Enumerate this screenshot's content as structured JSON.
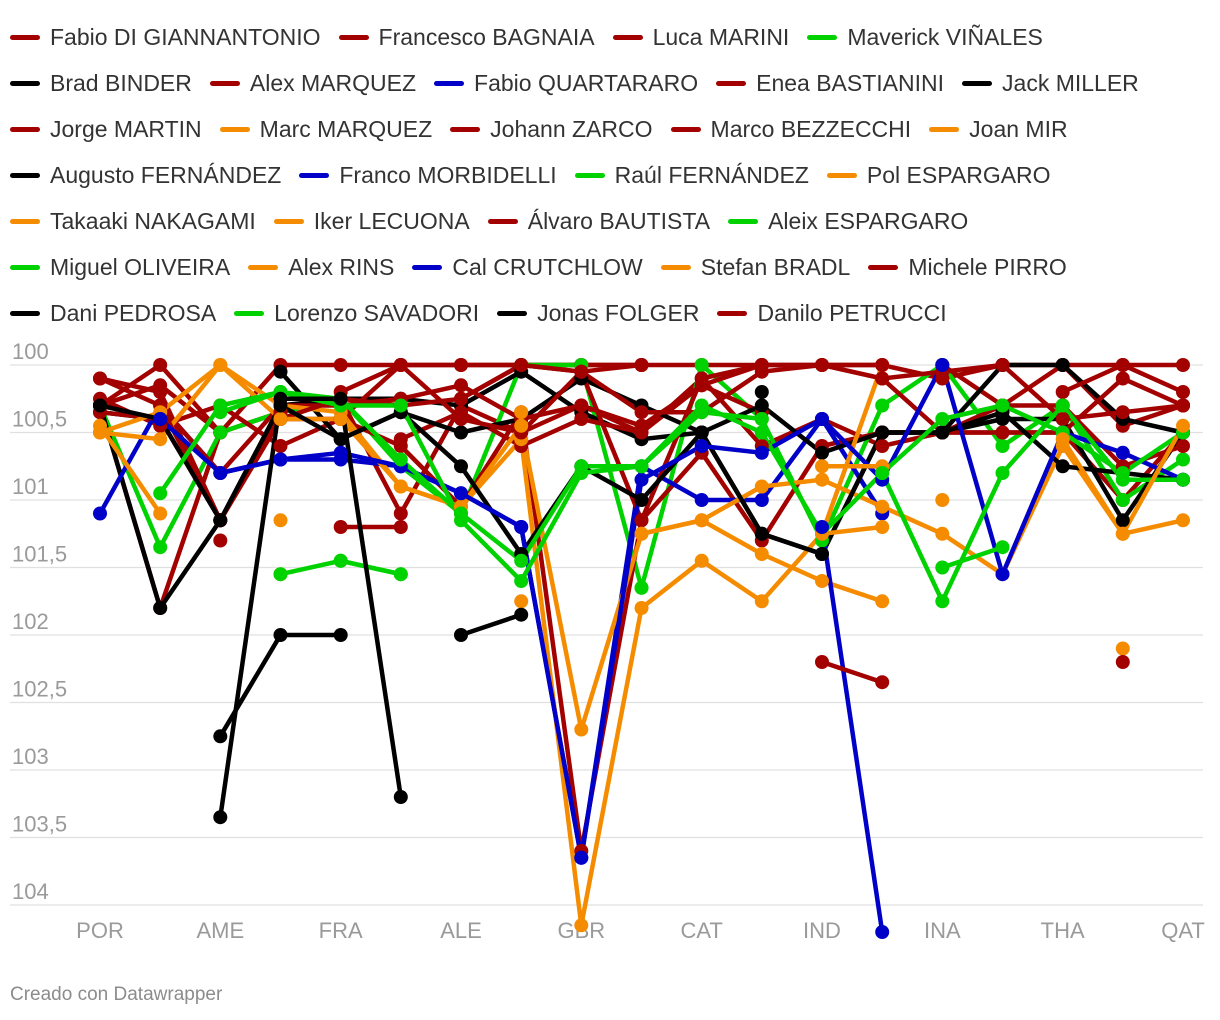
{
  "colors": {
    "dark_red": "#a30000",
    "green": "#00d200",
    "black": "#000000",
    "blue": "#0000c8",
    "orange": "#f58c00",
    "grid": "#e0e0e0",
    "tick_text": "#9a9a9a"
  },
  "credit": "Creado con Datawrapper",
  "chart_data": {
    "type": "line",
    "categories": [
      "POR",
      "",
      "AME",
      "",
      "FRA",
      "",
      "ALE",
      "",
      "GBR",
      "",
      "CAT",
      "",
      "IND",
      "",
      "INA",
      "",
      "THA",
      "",
      "QAT"
    ],
    "y_ticks": [
      "100",
      "100,5",
      "101",
      "101,5",
      "102",
      "102,5",
      "103",
      "103,5",
      "104"
    ],
    "y_tick_values": [
      100,
      100.5,
      101,
      101.5,
      102,
      102.5,
      103,
      103.5,
      104
    ],
    "ylim": [
      100,
      104.2
    ],
    "y_reversed": true,
    "grid": true,
    "legend_position": "top",
    "series": [
      {
        "name": "Fabio DI GIANNANTONIO",
        "color": "#a30000",
        "values": [
          100.3,
          100.0,
          100.5,
          100.0,
          100.0,
          100.0,
          100.0,
          100.0,
          100.0,
          100.0,
          null,
          null,
          null,
          null,
          null,
          null,
          null,
          null,
          null
        ]
      },
      {
        "name": "Francesco BAGNAIA",
        "color": "#a30000",
        "values": [
          100.3,
          100.15,
          100.5,
          null,
          100.2,
          100.0,
          100.0,
          100.0,
          100.0,
          100.0,
          100.0,
          100.0,
          100.0,
          100.0,
          100.1,
          100.0,
          100.0,
          100.0,
          100.0
        ]
      },
      {
        "name": "Luca MARINI",
        "color": "#a30000",
        "values": [
          100.3,
          101.8,
          100.5,
          100.35,
          100.25,
          101.1,
          100.3,
          100.5,
          100.3,
          100.5,
          100.1,
          100.6,
          100.4,
          100.6,
          100.5,
          100.5,
          100.5,
          101.0,
          100.5
        ]
      },
      {
        "name": "Maverick VIÑALES",
        "color": "#00d200",
        "values": [
          100.3,
          101.35,
          100.5,
          100.35,
          100.25,
          100.75,
          101.1,
          100.0,
          100.0,
          101.65,
          100.0,
          100.4,
          101.3,
          100.3,
          100.0,
          100.6,
          100.3,
          101.0,
          100.7
        ]
      },
      {
        "name": "Brad BINDER",
        "color": "#000000",
        "values": [
          100.3,
          101.8,
          101.15,
          100.3,
          100.25,
          100.25,
          100.3,
          100.05,
          100.35,
          100.55,
          100.5,
          101.25,
          101.4,
          100.5,
          100.5,
          100.4,
          100.4,
          101.15,
          100.5
        ]
      },
      {
        "name": "Alex MARQUEZ",
        "color": "#a30000",
        "values": [
          100.25,
          100.45,
          100.3,
          100.6,
          100.4,
          100.6,
          101.05,
          100.35,
          103.6,
          101.15,
          100.65,
          101.3,
          100.6,
          100.5,
          100.5,
          100.3,
          100.3,
          100.75,
          100.6
        ]
      },
      {
        "name": "Fabio QUARTARARO",
        "color": "#0000c8",
        "values": [
          101.1,
          100.3,
          100.8,
          100.7,
          100.7,
          100.75,
          100.95,
          101.2,
          103.65,
          100.75,
          101.0,
          101.0,
          100.4,
          101.1,
          null,
          null,
          null,
          null,
          null
        ]
      },
      {
        "name": "Enea BASTIANINI",
        "color": "#a30000",
        "values": [
          100.1,
          100.2,
          101.15,
          100.35,
          null,
          100.55,
          100.35,
          100.6,
          100.4,
          100.5,
          100.15,
          100.35,
          null,
          null,
          100.0,
          100.3,
          100.0,
          100.45,
          100.3
        ]
      },
      {
        "name": "Jack MILLER",
        "color": "#000000",
        "values": [
          100.35,
          100.4,
          null,
          100.05,
          100.55,
          100.35,
          100.5,
          100.4,
          100.1,
          100.3,
          100.5,
          100.3,
          100.65,
          100.5,
          100.5,
          100.0,
          100.0,
          100.4,
          100.5
        ]
      },
      {
        "name": "Jorge MARTIN",
        "color": "#a30000",
        "values": [
          100.1,
          100.3,
          100.8,
          100.3,
          100.3,
          100.25,
          100.15,
          100.4,
          100.3,
          100.45,
          100.15,
          100.0,
          null,
          100.1,
          100.05,
          100.0,
          100.4,
          100.35,
          100.3
        ]
      },
      {
        "name": "Marc MARQUEZ",
        "color": "#f58c00",
        "values": [
          100.5,
          100.55,
          100.0,
          100.3,
          100.35,
          100.9,
          101.05,
          100.55,
          104.15,
          101.8,
          101.45,
          101.75,
          101.25,
          100.0,
          null,
          null,
          null,
          null,
          null
        ]
      },
      {
        "name": "Johann ZARCO",
        "color": "#a30000",
        "values": [
          100.35,
          100.4,
          101.15,
          100.4,
          100.25,
          100.3,
          100.25,
          100.0,
          100.05,
          100.35,
          100.35,
          100.05,
          100.0,
          100.1,
          100.5,
          100.5,
          100.5,
          100.1,
          100.3
        ]
      },
      {
        "name": "Marco BEZZECCHI",
        "color": "#a30000",
        "values": [
          null,
          100.3,
          101.15,
          100.4,
          100.4,
          100.0,
          100.4,
          100.5,
          100.05,
          101.15,
          100.1,
          100.0,
          100.0,
          100.0,
          null,
          null,
          100.2,
          100.0,
          100.2
        ]
      },
      {
        "name": "Joan MIR",
        "color": "#f58c00",
        "values": [
          100.5,
          100.35,
          100.0,
          100.4,
          100.4,
          100.9,
          101.05,
          100.45,
          102.7,
          101.25,
          101.15,
          100.9,
          100.85,
          101.05,
          101.25,
          101.55,
          100.6,
          101.25,
          101.15
        ]
      },
      {
        "name": "Augusto FERNÁNDEZ",
        "color": "#000000",
        "values": [
          100.3,
          100.4,
          101.15,
          100.3,
          100.55,
          100.35,
          100.75,
          101.4,
          100.75,
          101.0,
          100.5,
          101.25,
          101.4,
          100.5,
          100.5,
          100.35,
          100.75,
          100.8,
          100.85
        ]
      },
      {
        "name": "Franco MORBIDELLI",
        "color": "#0000c8",
        "values": [
          null,
          100.4,
          100.8,
          100.7,
          100.65,
          100.75,
          100.95,
          101.2,
          103.65,
          100.85,
          100.6,
          100.65,
          100.4,
          100.85,
          100.0,
          101.55,
          100.5,
          100.65,
          100.85
        ]
      },
      {
        "name": "Raúl FERNÁNDEZ",
        "color": "#00d200",
        "values": [
          null,
          100.95,
          100.3,
          100.2,
          100.25,
          100.7,
          101.1,
          101.45,
          100.75,
          100.75,
          100.3,
          100.5,
          101.25,
          100.8,
          101.75,
          100.8,
          100.3,
          100.85,
          100.85
        ]
      },
      {
        "name": "Pol ESPARGARO",
        "color": "#f58c00",
        "values": [
          null,
          null,
          null,
          101.55,
          null,
          null,
          null,
          null,
          null,
          null,
          null,
          null,
          100.75,
          100.75,
          null,
          null,
          null,
          null,
          null
        ]
      },
      {
        "name": "Takaaki NAKAGAMI",
        "color": "#f58c00",
        "values": [
          null,
          null,
          null,
          101.15,
          null,
          null,
          null,
          null,
          null,
          101.25,
          101.15,
          101.4,
          101.6,
          101.75,
          null,
          null,
          null,
          null,
          null
        ]
      },
      {
        "name": "Iker LECUONA",
        "color": "#f58c00",
        "values": [
          null,
          null,
          null,
          null,
          null,
          null,
          null,
          null,
          null,
          null,
          null,
          null,
          101.25,
          101.2,
          null,
          null,
          null,
          null,
          null
        ]
      },
      {
        "name": "Álvaro BAUTISTA",
        "color": "#a30000",
        "values": [
          null,
          null,
          101.3,
          null,
          101.2,
          101.2,
          null,
          null,
          null,
          null,
          null,
          null,
          null,
          null,
          null,
          null,
          null,
          null,
          null
        ]
      },
      {
        "name": "Aleix ESPARGARO",
        "color": "#00d200",
        "values": [
          null,
          null,
          100.35,
          100.2,
          100.3,
          100.3,
          101.15,
          101.6,
          100.8,
          100.75,
          100.35,
          100.4,
          null,
          100.8,
          100.4,
          100.3,
          100.5,
          100.8,
          100.5
        ]
      },
      {
        "name": "Miguel OLIVEIRA",
        "color": "#00d200",
        "values": [
          null,
          null,
          null,
          101.55,
          101.45,
          101.55,
          null,
          null,
          null,
          null,
          null,
          null,
          null,
          null,
          101.5,
          101.35,
          null,
          null,
          null
        ]
      },
      {
        "name": "Alex RINS",
        "color": "#f58c00",
        "values": [
          100.45,
          101.1,
          null,
          null,
          null,
          null,
          null,
          100.35,
          null,
          null,
          null,
          null,
          null,
          null,
          null,
          null,
          100.55,
          101.25,
          100.45
        ]
      },
      {
        "name": "Cal CRUTCHLOW",
        "color": "#0000c8",
        "values": [
          null,
          null,
          null,
          null,
          null,
          null,
          null,
          null,
          null,
          null,
          null,
          null,
          101.2,
          104.2,
          null,
          null,
          null,
          null,
          null
        ]
      },
      {
        "name": "Stefan BRADL",
        "color": "#f58c00",
        "values": [
          null,
          null,
          null,
          null,
          null,
          null,
          null,
          101.75,
          null,
          null,
          null,
          null,
          null,
          null,
          101.0,
          null,
          null,
          102.1,
          null
        ]
      },
      {
        "name": "Michele PIRRO",
        "color": "#a30000",
        "values": [
          null,
          null,
          null,
          null,
          null,
          null,
          null,
          null,
          null,
          null,
          null,
          null,
          102.2,
          102.35,
          null,
          null,
          null,
          102.2,
          null
        ]
      },
      {
        "name": "Dani PEDROSA",
        "color": "#000000",
        "values": [
          null,
          null,
          102.75,
          102.0,
          102.0,
          null,
          102.0,
          101.85,
          null,
          null,
          null,
          100.2,
          null,
          null,
          null,
          null,
          null,
          null,
          null
        ]
      },
      {
        "name": "Lorenzo SAVADORI",
        "color": "#00d200",
        "values": [
          null,
          null,
          null,
          null,
          101.45,
          101.55,
          null,
          null,
          null,
          101.65,
          null,
          null,
          null,
          null,
          null,
          null,
          null,
          null,
          null
        ]
      },
      {
        "name": "Jonas FOLGER",
        "color": "#000000",
        "values": [
          null,
          null,
          103.35,
          100.25,
          100.25,
          103.2,
          null,
          null,
          null,
          null,
          null,
          null,
          null,
          null,
          null,
          null,
          null,
          null,
          null
        ]
      },
      {
        "name": "Danilo PETRUCCI",
        "color": "#a30000",
        "values": [
          null,
          null,
          null,
          null,
          null,
          null,
          100.25,
          100.0,
          100.05,
          100.0,
          null,
          null,
          null,
          null,
          null,
          null,
          null,
          null,
          null
        ]
      }
    ]
  }
}
